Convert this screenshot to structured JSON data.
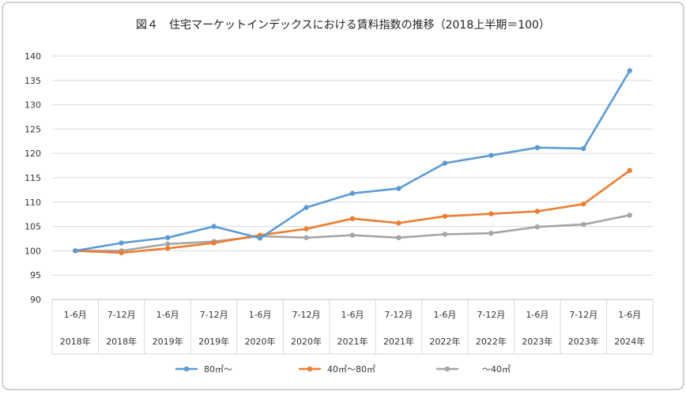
{
  "chart_data": {
    "type": "line",
    "title": "図４　住宅マーケットインデックスにおける賃料指数の推移（2018上半期＝100）",
    "xlabel": "",
    "ylabel": "",
    "ylim": [
      90,
      140
    ],
    "yticks": [
      "140",
      "135",
      "130",
      "125",
      "120",
      "115",
      "110",
      "105",
      "100",
      "95",
      "90"
    ],
    "grid": true,
    "legend_position": "bottom",
    "categories": [
      {
        "period": "1-6月",
        "year": "2018年"
      },
      {
        "period": "7-12月",
        "year": "2018年"
      },
      {
        "period": "1-6月",
        "year": "2019年"
      },
      {
        "period": "7-12月",
        "year": "2019年"
      },
      {
        "period": "1-6月",
        "year": "2020年"
      },
      {
        "period": "7-12月",
        "year": "2020年"
      },
      {
        "period": "1-6月",
        "year": "2021年"
      },
      {
        "period": "7-12月",
        "year": "2021年"
      },
      {
        "period": "1-6月",
        "year": "2022年"
      },
      {
        "period": "7-12月",
        "year": "2022年"
      },
      {
        "period": "1-6月",
        "year": "2023年"
      },
      {
        "period": "7-12月",
        "year": "2023年"
      },
      {
        "period": "1-6月",
        "year": "2024年"
      }
    ],
    "series": [
      {
        "name": "80㎡〜",
        "color": "#5b9bd5",
        "values": [
          100,
          101.6,
          102.7,
          105.0,
          102.6,
          108.9,
          111.8,
          112.8,
          118.0,
          119.6,
          121.2,
          121.0,
          137.0
        ]
      },
      {
        "name": "40㎡〜80㎡",
        "color": "#ed7d31",
        "values": [
          100,
          99.6,
          100.5,
          101.6,
          103.2,
          104.5,
          106.6,
          105.7,
          107.1,
          107.6,
          108.1,
          109.6,
          116.5
        ]
      },
      {
        "name": "〜40㎡",
        "color": "#a5a5a5",
        "values": [
          100,
          100.0,
          101.4,
          101.9,
          103.0,
          102.7,
          103.2,
          102.7,
          103.4,
          103.6,
          104.9,
          105.4,
          107.3
        ]
      }
    ]
  }
}
